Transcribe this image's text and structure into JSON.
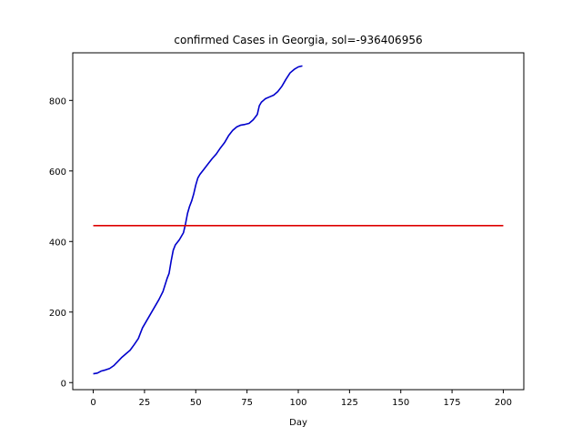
{
  "chart_data": {
    "type": "line",
    "title": "confirmed Cases in Georgia, sol=-936406956",
    "xlabel": "Day",
    "ylabel": "",
    "xlim": [
      -10,
      210
    ],
    "ylim": [
      -20,
      935
    ],
    "xticks": [
      0,
      25,
      50,
      75,
      100,
      125,
      150,
      175,
      200
    ],
    "yticks": [
      0,
      200,
      400,
      600,
      800
    ],
    "grid": false,
    "series": [
      {
        "color": "#0000cc",
        "x": [
          0,
          2,
          4,
          6,
          8,
          10,
          12,
          14,
          16,
          18,
          20,
          22,
          24,
          26,
          28,
          30,
          32,
          34,
          36,
          37,
          38,
          39,
          40,
          42,
          44,
          45,
          46,
          47,
          48,
          49,
          50,
          51,
          52,
          54,
          56,
          58,
          60,
          62,
          64,
          66,
          68,
          70,
          72,
          74,
          76,
          78,
          80,
          81,
          82,
          83,
          84,
          86,
          88,
          90,
          92,
          94,
          96,
          98,
          100,
          102
        ],
        "y": [
          25,
          27,
          33,
          36,
          40,
          48,
          60,
          72,
          82,
          92,
          108,
          125,
          155,
          175,
          195,
          215,
          235,
          258,
          295,
          310,
          345,
          375,
          390,
          405,
          425,
          450,
          480,
          500,
          515,
          535,
          560,
          580,
          590,
          605,
          620,
          635,
          648,
          665,
          680,
          700,
          715,
          725,
          730,
          732,
          735,
          745,
          760,
          785,
          795,
          800,
          805,
          810,
          815,
          825,
          840,
          860,
          878,
          888,
          895,
          898
        ]
      },
      {
        "color": "#dd0000",
        "x": [
          0,
          200
        ],
        "y": [
          445,
          445
        ]
      }
    ]
  }
}
